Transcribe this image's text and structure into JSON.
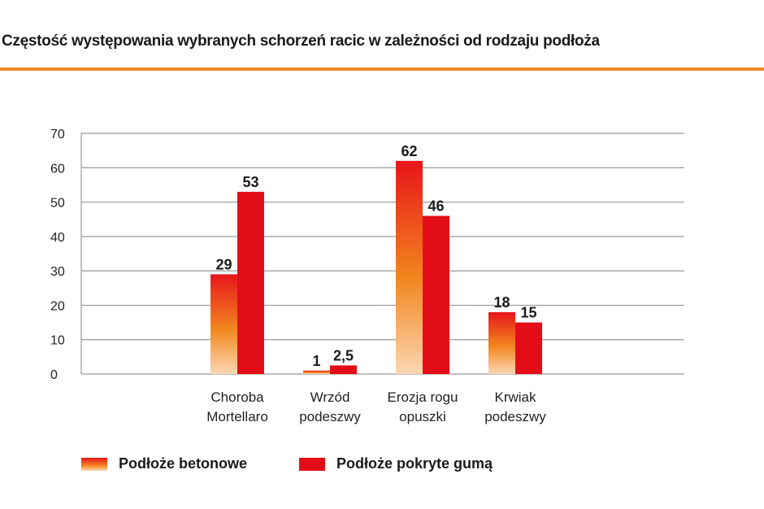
{
  "title": "Częstość występowania wybranych schorzeń racic w zależności od rodzaju podłoża",
  "colors": {
    "accent_rule": "#f08c24",
    "rubber": "#e30d17",
    "concrete_top": "#e8151c",
    "concrete_mid": "#f2861e",
    "concrete_bottom": "#fbd7b3",
    "grid": "#9a9a9a"
  },
  "legend": [
    {
      "name": "Podłoże betonowe",
      "style": "gradient"
    },
    {
      "name": "Podłoże pokryte gumą",
      "style": "solid"
    }
  ],
  "chart_data": {
    "type": "bar",
    "title": "Częstość występowania wybranych schorzeń racic w zależności od rodzaju podłoża",
    "categories": [
      [
        "Choroba",
        "Mortellaro"
      ],
      [
        "Wrzód",
        "podeszwy"
      ],
      [
        "Erozja rogu",
        "opuszki"
      ],
      [
        "Krwiak",
        "podeszwy"
      ]
    ],
    "series": [
      {
        "name": "Podłoże betonowe",
        "values": [
          29,
          1,
          62,
          18
        ],
        "labels": [
          "29",
          "1",
          "62",
          "18"
        ]
      },
      {
        "name": "Podłoże pokryte gumą",
        "values": [
          53,
          2.5,
          46,
          15
        ],
        "labels": [
          "53",
          "2,5",
          "46",
          "15"
        ]
      }
    ],
    "xlabel": "",
    "ylabel": "",
    "ylim": [
      0,
      70
    ],
    "yticks": [
      0,
      10,
      20,
      30,
      40,
      50,
      60,
      70
    ],
    "grid": true,
    "legend_position": "bottom"
  }
}
